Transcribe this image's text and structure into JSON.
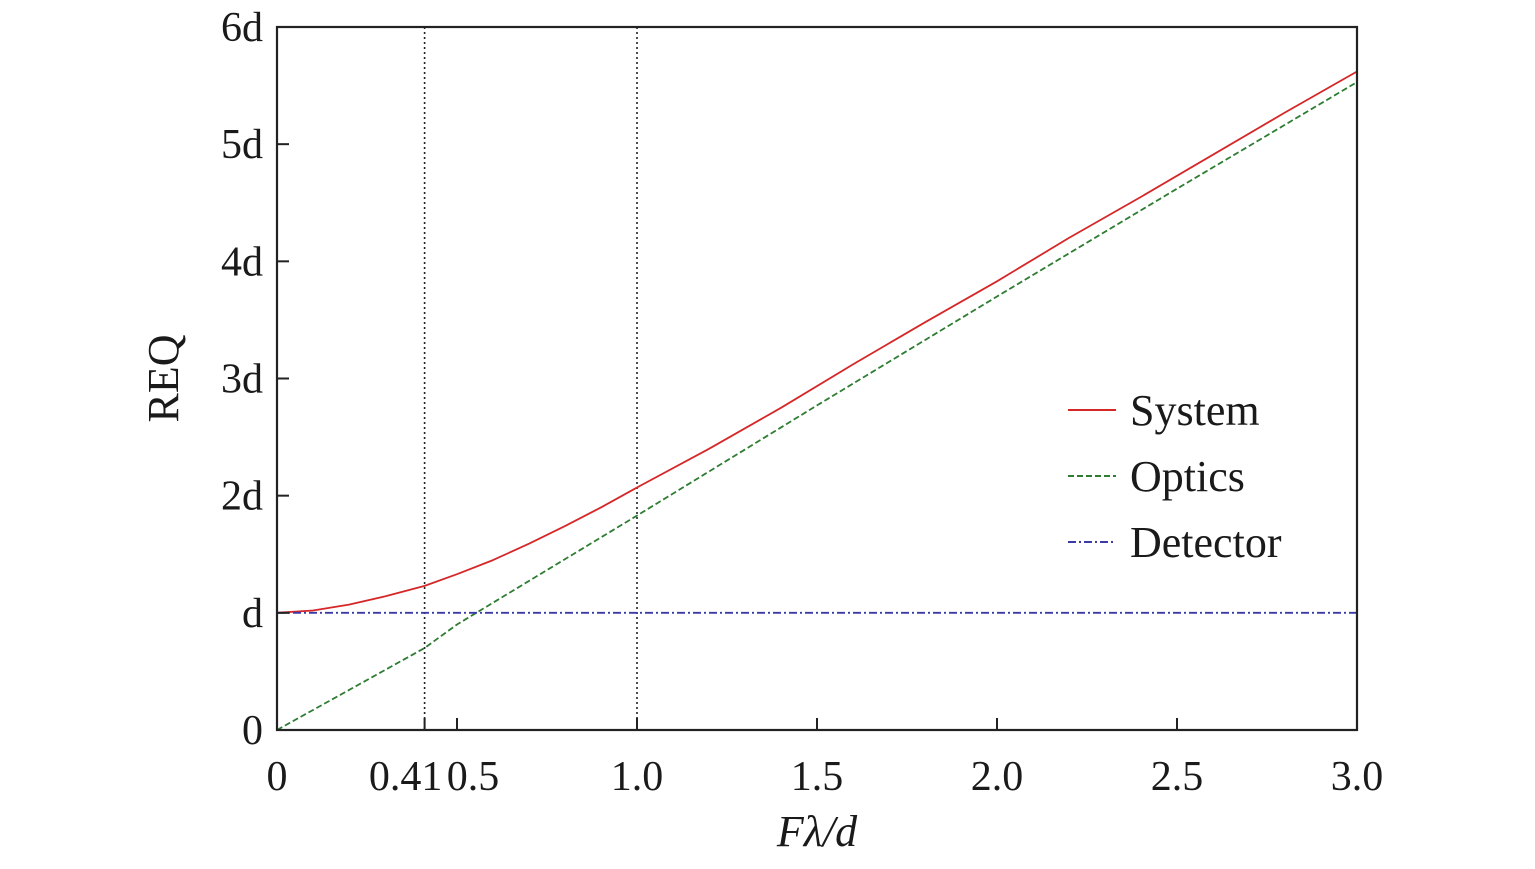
{
  "chart_data": {
    "type": "line",
    "title": "",
    "xlabel": "Fλ/d",
    "ylabel": "REQ",
    "xlim": [
      0,
      3.0
    ],
    "ylim": [
      0,
      6
    ],
    "x_ticks": [
      {
        "value": 0,
        "label": "0"
      },
      {
        "value": 0.41,
        "label": "0.41"
      },
      {
        "value": 0.5,
        "label": "0.5"
      },
      {
        "value": 1.0,
        "label": "1.0"
      },
      {
        "value": 1.5,
        "label": "1.5"
      },
      {
        "value": 2.0,
        "label": "2.0"
      },
      {
        "value": 2.5,
        "label": "2.5"
      },
      {
        "value": 3.0,
        "label": "3.0"
      }
    ],
    "y_ticks": [
      {
        "value": 0,
        "label": "0"
      },
      {
        "value": 1,
        "label": "d"
      },
      {
        "value": 2,
        "label": "2d"
      },
      {
        "value": 3,
        "label": "3d"
      },
      {
        "value": 4,
        "label": "4d"
      },
      {
        "value": 5,
        "label": "5d"
      },
      {
        "value": 6,
        "label": "6d"
      }
    ],
    "reference_lines_x": [
      0.41,
      1.0
    ],
    "grid": false,
    "legend_position": "right",
    "series": [
      {
        "name": "System",
        "color": "#d62728",
        "dash": "solid",
        "x": [
          0,
          0.1,
          0.2,
          0.3,
          0.41,
          0.5,
          0.6,
          0.7,
          0.8,
          0.9,
          1.0,
          1.2,
          1.4,
          1.6,
          1.8,
          2.0,
          2.2,
          2.4,
          2.6,
          2.8,
          3.0
        ],
        "y": [
          1.0,
          1.02,
          1.07,
          1.14,
          1.23,
          1.33,
          1.45,
          1.59,
          1.74,
          1.9,
          2.07,
          2.4,
          2.75,
          3.12,
          3.48,
          3.83,
          4.2,
          4.55,
          4.91,
          5.27,
          5.62
        ]
      },
      {
        "name": "Optics",
        "color": "#2e7d32",
        "dash": "dashed",
        "x": [
          0,
          0.41,
          0.5,
          1.0,
          1.5,
          2.0,
          2.5,
          3.0
        ],
        "y": [
          0,
          0.7,
          0.9,
          1.83,
          2.77,
          3.7,
          4.62,
          5.53
        ]
      },
      {
        "name": "Detector",
        "color": "#3b3ba8",
        "dash": "dashdot",
        "x": [
          0,
          3.0
        ],
        "y": [
          1.0,
          1.0
        ]
      }
    ]
  }
}
